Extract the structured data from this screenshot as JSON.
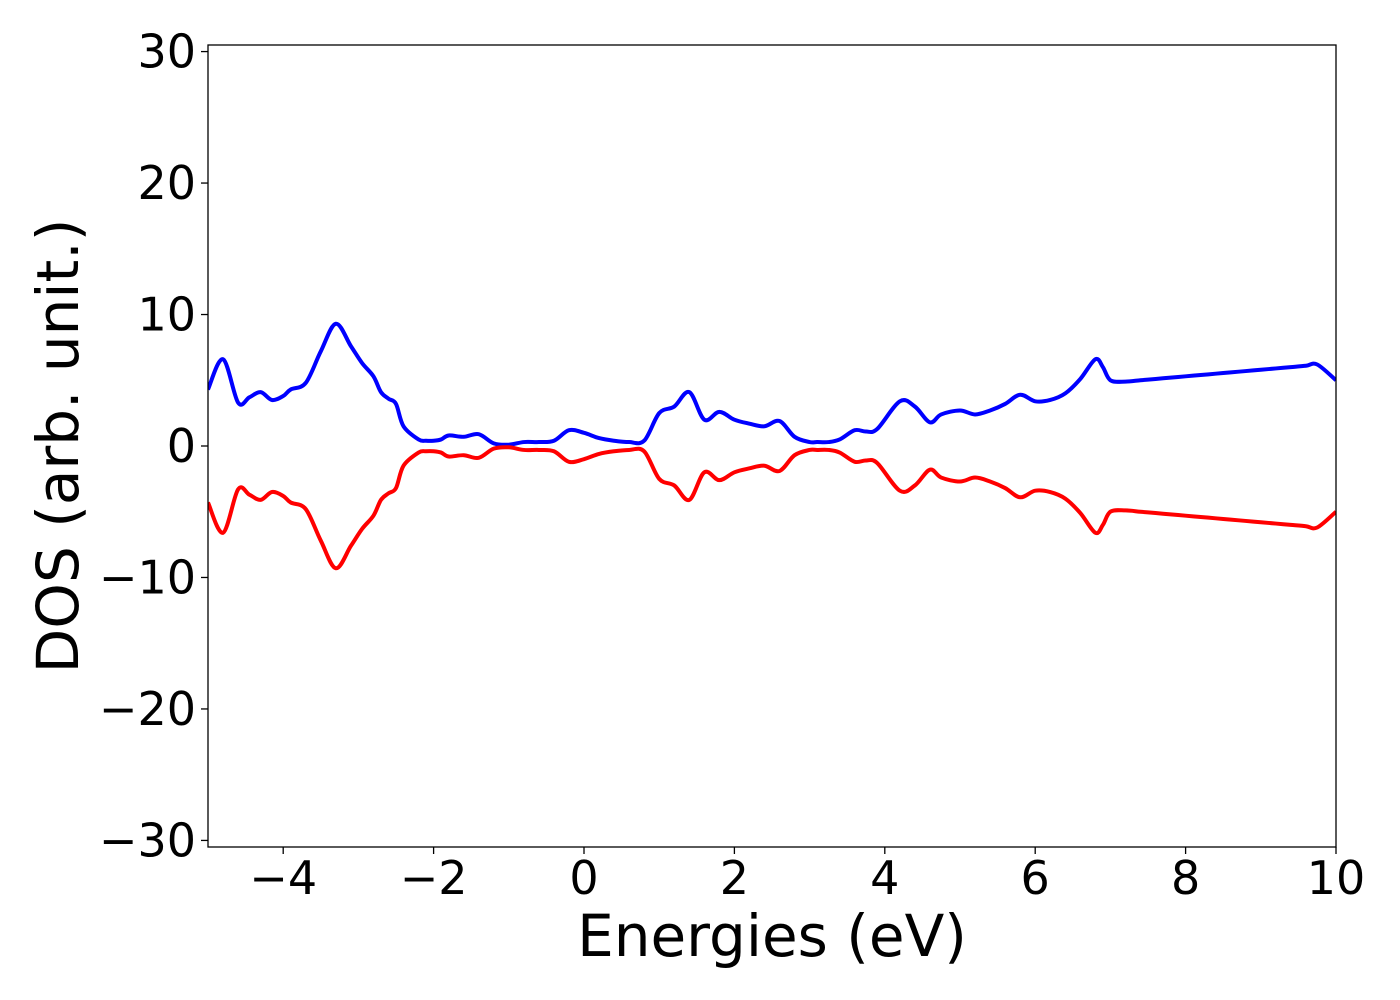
{
  "chart_data": {
    "type": "line",
    "title": "",
    "xlabel": "Energies (eV)",
    "ylabel": "DOS (arb. unit.)",
    "xlim": [
      -5,
      10
    ],
    "ylim": [
      -30.5,
      30.5
    ],
    "xticks": [
      -4,
      -2,
      0,
      2,
      4,
      6,
      8,
      10
    ],
    "xtick_labels": [
      "−4",
      "−2",
      "0",
      "2",
      "4",
      "6",
      "8",
      "10"
    ],
    "yticks": [
      -30,
      -20,
      -10,
      0,
      10,
      20,
      30
    ],
    "ytick_labels": [
      "−30",
      "−20",
      "−10",
      "0",
      "10",
      "20",
      "30"
    ],
    "grid": false,
    "legend": "none",
    "series": [
      {
        "color": "#0000ff",
        "x": [
          -5.0,
          -4.8,
          -4.6,
          -4.45,
          -4.3,
          -4.15,
          -4.0,
          -3.9,
          -3.7,
          -3.5,
          -3.3,
          -3.1,
          -2.95,
          -2.8,
          -2.7,
          -2.6,
          -2.5,
          -2.4,
          -2.2,
          -2.1,
          -2.0,
          -1.9,
          -1.8,
          -1.6,
          -1.4,
          -1.2,
          -1.0,
          -0.8,
          -0.6,
          -0.4,
          -0.2,
          0.0,
          0.2,
          0.4,
          0.6,
          0.8,
          1.0,
          1.2,
          1.4,
          1.6,
          1.8,
          2.0,
          2.2,
          2.4,
          2.6,
          2.8,
          3.0,
          3.1,
          3.25,
          3.4,
          3.6,
          3.75,
          3.9,
          4.2,
          4.4,
          4.6,
          4.75,
          5.0,
          5.2,
          5.4,
          5.6,
          5.8,
          6.0,
          6.2,
          6.4,
          6.6,
          6.8,
          6.9,
          7.0,
          7.2,
          7.4,
          7.6,
          7.8,
          8.0,
          8.2,
          8.4,
          8.6,
          8.8,
          9.0,
          9.2,
          9.4,
          9.6,
          9.75,
          10.0
        ],
        "values": [
          4.3,
          6.6,
          3.3,
          3.7,
          4.1,
          3.5,
          3.8,
          4.3,
          4.8,
          7.2,
          9.3,
          7.6,
          6.3,
          5.3,
          4.1,
          3.6,
          3.2,
          1.5,
          0.5,
          0.4,
          0.4,
          0.5,
          0.8,
          0.7,
          0.9,
          0.2,
          0.1,
          0.3,
          0.3,
          0.4,
          1.2,
          1.0,
          0.6,
          0.4,
          0.3,
          0.4,
          2.5,
          3.0,
          4.1,
          2.0,
          2.6,
          2.0,
          1.7,
          1.5,
          1.9,
          0.7,
          0.3,
          0.3,
          0.3,
          0.5,
          1.2,
          1.1,
          1.3,
          3.4,
          3.0,
          1.8,
          2.4,
          2.7,
          2.4,
          2.7,
          3.2,
          3.9,
          3.4,
          3.5,
          4.0,
          5.1,
          6.6,
          6.0,
          5.0,
          4.9,
          5.0,
          5.1,
          5.2,
          5.3,
          5.4,
          5.5,
          5.6,
          5.7,
          5.8,
          5.9,
          6.0,
          6.1,
          6.2,
          5.0
        ]
      },
      {
        "color": "#ff0000",
        "x": [
          -5.0,
          -4.8,
          -4.6,
          -4.45,
          -4.3,
          -4.15,
          -4.0,
          -3.9,
          -3.7,
          -3.5,
          -3.3,
          -3.1,
          -2.95,
          -2.8,
          -2.7,
          -2.6,
          -2.5,
          -2.4,
          -2.2,
          -2.1,
          -2.0,
          -1.9,
          -1.8,
          -1.6,
          -1.4,
          -1.2,
          -1.0,
          -0.8,
          -0.6,
          -0.4,
          -0.2,
          0.0,
          0.2,
          0.4,
          0.6,
          0.8,
          1.0,
          1.2,
          1.4,
          1.6,
          1.8,
          2.0,
          2.2,
          2.4,
          2.6,
          2.8,
          3.0,
          3.1,
          3.25,
          3.4,
          3.6,
          3.75,
          3.9,
          4.2,
          4.4,
          4.6,
          4.75,
          5.0,
          5.2,
          5.4,
          5.6,
          5.8,
          6.0,
          6.2,
          6.4,
          6.6,
          6.8,
          6.9,
          7.0,
          7.2,
          7.4,
          7.6,
          7.8,
          8.0,
          8.2,
          8.4,
          8.6,
          8.8,
          9.0,
          9.2,
          9.4,
          9.6,
          9.75,
          10.0
        ],
        "values": [
          -4.3,
          -6.6,
          -3.3,
          -3.7,
          -4.1,
          -3.5,
          -3.8,
          -4.3,
          -4.8,
          -7.2,
          -9.3,
          -7.6,
          -6.3,
          -5.3,
          -4.1,
          -3.6,
          -3.2,
          -1.5,
          -0.5,
          -0.4,
          -0.4,
          -0.5,
          -0.8,
          -0.7,
          -0.9,
          -0.2,
          -0.1,
          -0.3,
          -0.3,
          -0.4,
          -1.2,
          -1.0,
          -0.6,
          -0.4,
          -0.3,
          -0.4,
          -2.5,
          -3.0,
          -4.1,
          -2.0,
          -2.6,
          -2.0,
          -1.7,
          -1.5,
          -1.9,
          -0.7,
          -0.3,
          -0.3,
          -0.3,
          -0.5,
          -1.2,
          -1.1,
          -1.3,
          -3.4,
          -3.0,
          -1.8,
          -2.4,
          -2.7,
          -2.4,
          -2.7,
          -3.2,
          -3.9,
          -3.4,
          -3.5,
          -4.0,
          -5.1,
          -6.6,
          -6.0,
          -5.0,
          -4.9,
          -5.0,
          -5.1,
          -5.2,
          -5.3,
          -5.4,
          -5.5,
          -5.6,
          -5.7,
          -5.8,
          -5.9,
          -6.0,
          -6.1,
          -6.2,
          -5.0
        ]
      }
    ]
  }
}
